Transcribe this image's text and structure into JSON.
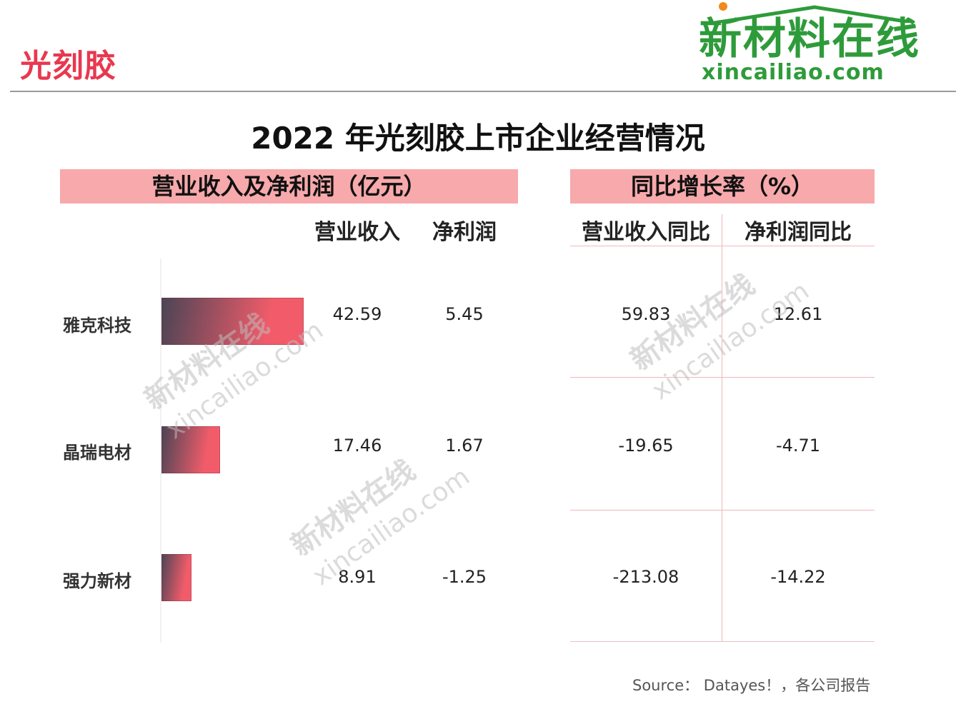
{
  "header": {
    "section_title": "光刻胶",
    "logo_cn": "新材料在线",
    "logo_en": "xincailiao.com"
  },
  "title": "2022 年光刻胶上市企业经营情况",
  "left_panel": {
    "band_label": "营业收入及净利润（亿元）",
    "col_revenue": "营业收入",
    "col_profit": "净利润"
  },
  "right_panel": {
    "band_label": "同比增长率（%）",
    "col_revenue_yoy": "营业收入同比",
    "col_profit_yoy": "净利润同比"
  },
  "chart_data": {
    "type": "table",
    "rows": [
      {
        "company": "雅克科技",
        "revenue": "42.59",
        "profit": "5.45",
        "revenue_yoy": "59.83",
        "profit_yoy": "12.61"
      },
      {
        "company": "晶瑞电材",
        "revenue": "17.46",
        "profit": "1.67",
        "revenue_yoy": "-19.65",
        "profit_yoy": "-4.71"
      },
      {
        "company": "强力新材",
        "revenue": "8.91",
        "profit": "-1.25",
        "revenue_yoy": "-213.08",
        "profit_yoy": "-14.22"
      }
    ],
    "bar_values": [
      42.59,
      17.46,
      8.91
    ],
    "bar_max": 42.59,
    "colors": {
      "bar_start": "#4a4455",
      "bar_end": "#f25c6a",
      "band": "#f7a9ac",
      "accent": "#e8384f"
    }
  },
  "watermark": {
    "cn": "新材料在线",
    "en": "xincailiao.com"
  },
  "source": "Source： Datayes！，各公司报告"
}
